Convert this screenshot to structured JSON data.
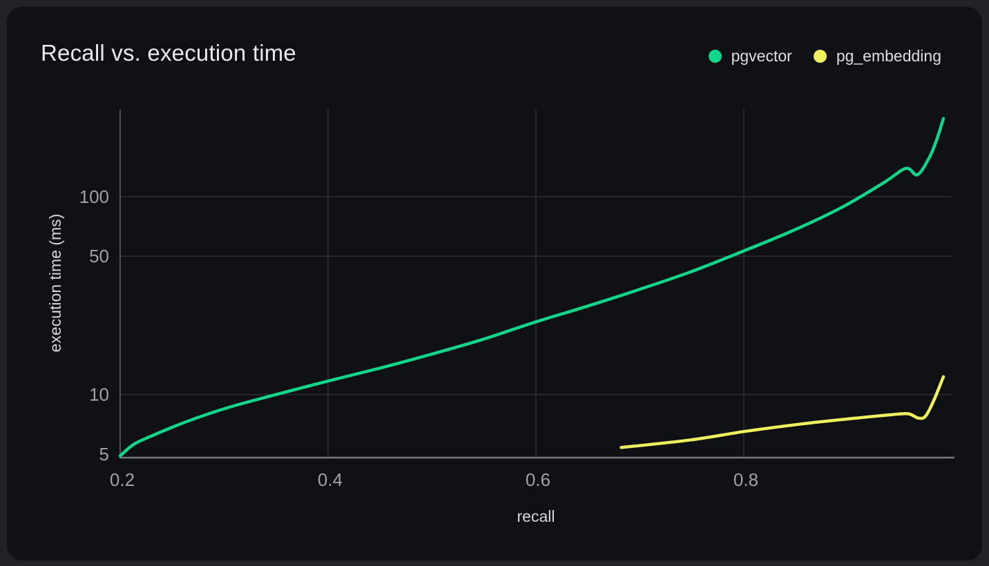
{
  "page": {
    "background": "#212226"
  },
  "card": {
    "background": "#0f1013",
    "title": "Recall vs. execution time"
  },
  "legend": {
    "position": "top-right",
    "items": [
      {
        "label": "pgvector",
        "color": "#10d68a"
      },
      {
        "label": "pg_embedding",
        "color": "#eef05e"
      }
    ]
  },
  "chart_data": {
    "type": "line",
    "title": "Recall vs. execution time",
    "xlabel": "recall",
    "ylabel": "execution time (ms)",
    "x_scale": "linear",
    "y_scale": "log",
    "xlim": [
      0.2,
      1.0
    ],
    "ylim": [
      4.8,
      277
    ],
    "grid": true,
    "legend_position": "top-right",
    "x_ticks": [
      {
        "value": 0.2,
        "label": "0.2",
        "grid": false
      },
      {
        "value": 0.4,
        "label": "0.4",
        "grid": true
      },
      {
        "value": 0.6,
        "label": "0.6",
        "grid": true
      },
      {
        "value": 0.8,
        "label": "0.8",
        "grid": true
      }
    ],
    "y_ticks": [
      {
        "value": 5,
        "label": "5",
        "grid": false
      },
      {
        "value": 10,
        "label": "10",
        "grid": true
      },
      {
        "value": 50,
        "label": "50",
        "grid": true
      },
      {
        "value": 100,
        "label": "100",
        "grid": true
      }
    ],
    "series": [
      {
        "name": "pgvector",
        "color": "#10d68a",
        "points": [
          [
            0.2,
            4.9
          ],
          [
            0.213,
            5.6
          ],
          [
            0.231,
            6.2
          ],
          [
            0.264,
            7.3
          ],
          [
            0.304,
            8.6
          ],
          [
            0.35,
            10.0
          ],
          [
            0.4,
            11.7
          ],
          [
            0.45,
            13.6
          ],
          [
            0.496,
            15.8
          ],
          [
            0.549,
            19.0
          ],
          [
            0.6,
            23.3
          ],
          [
            0.649,
            27.9
          ],
          [
            0.699,
            33.9
          ],
          [
            0.749,
            41.7
          ],
          [
            0.8,
            53.2
          ],
          [
            0.848,
            67.6
          ],
          [
            0.895,
            88.7
          ],
          [
            0.935,
            118.0
          ],
          [
            0.956,
            139.0
          ],
          [
            0.967,
            129.0
          ],
          [
            0.978,
            156.0
          ],
          [
            0.985,
            190.0
          ],
          [
            0.992,
            248.0
          ]
        ]
      },
      {
        "name": "pg_embedding",
        "color": "#eef05e",
        "points": [
          [
            0.682,
            5.4
          ],
          [
            0.749,
            5.9
          ],
          [
            0.8,
            6.5
          ],
          [
            0.855,
            7.1
          ],
          [
            0.908,
            7.6
          ],
          [
            0.941,
            7.9
          ],
          [
            0.958,
            8.0
          ],
          [
            0.968,
            7.6
          ],
          [
            0.975,
            7.8
          ],
          [
            0.983,
            9.4
          ],
          [
            0.992,
            12.3
          ]
        ]
      }
    ]
  },
  "colors": {
    "grid": "#2f3136",
    "x_axis_line": "#74777e",
    "y_axis_line": "#4c4f55",
    "tick_label": "#9fa2a8",
    "axis_title": "#d6d8db",
    "title": "#e6e8ea",
    "legend_label": "#dcdee1"
  },
  "layout_values": {
    "series_stroke_width": 4.5
  }
}
